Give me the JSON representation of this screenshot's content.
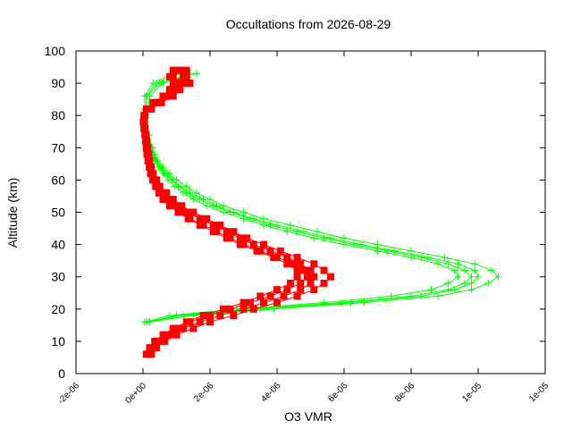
{
  "chart_data": {
    "type": "scatter",
    "title": "Occultations from 2026-08-29",
    "xlabel": "O3 VMR",
    "ylabel": "Altitude (km)",
    "xlim": [
      -2e-06,
      1e-05
    ],
    "ylim": [
      0,
      100
    ],
    "x_tick_values": [
      -2e-06,
      0,
      2e-06,
      4e-06,
      6e-06,
      8e-06,
      1e-05,
      1.2e-05
    ],
    "x_tick_labels": [
      "-2e-06",
      "0e+00",
      "2e-06",
      "4e-06",
      "6e-06",
      "8e-06",
      "1e-05",
      "1e-05"
    ],
    "y_ticks": [
      0,
      10,
      20,
      30,
      40,
      50,
      60,
      70,
      80,
      90,
      100
    ],
    "grid": false,
    "legend": "none",
    "series": [
      {
        "marker": "plus",
        "color": "#00ff00",
        "profiles": [
          {
            "altitude": [
              16,
              18,
              20,
              22,
              24,
              26,
              28,
              30,
              32,
              34,
              36,
              38,
              40,
              42,
              44,
              46,
              48,
              50,
              52,
              54,
              56,
              58,
              60,
              62,
              64,
              66,
              68,
              70,
              74,
              78,
              82,
              86,
              90,
              93
            ],
            "vmr": [
              1e-07,
              1.2e-06,
              3.5e-06,
              6.2e-06,
              8.3e-06,
              9.3e-06,
              9.8e-06,
              1e-05,
              9.9e-06,
              9.4e-06,
              8.5e-06,
              7.5e-06,
              6.5e-06,
              5.6e-06,
              4.8e-06,
              4e-06,
              3.3e-06,
              2.7e-06,
              2.2e-06,
              1.8e-06,
              1.4e-06,
              1.1e-06,
              9e-07,
              7e-07,
              5.5e-07,
              4e-07,
              3e-07,
              2.5e-07,
              1.5e-07,
              5e-08,
              1e-07,
              1e-07,
              4e-07,
              1.1e-06
            ]
          },
          {
            "altitude": [
              16,
              18,
              20,
              22,
              24,
              26,
              28,
              30,
              32,
              34,
              36,
              38,
              40,
              42,
              44,
              46,
              48,
              50,
              52,
              54,
              56,
              58,
              60,
              62,
              64,
              66,
              68,
              70,
              74,
              78,
              82,
              86,
              90,
              93
            ],
            "vmr": [
              2e-07,
              1.5e-06,
              3.9e-06,
              6.6e-06,
              8.8e-06,
              9.8e-06,
              1.03e-05,
              1.06e-05,
              1.04e-05,
              9.9e-06,
              9e-06,
              8e-06,
              7e-06,
              6e-06,
              5.2e-06,
              4.4e-06,
              3.6e-06,
              3e-06,
              2.4e-06,
              2e-06,
              1.6e-06,
              1.3e-06,
              1e-06,
              8e-07,
              6e-07,
              4.5e-07,
              3.5e-07,
              2.8e-07,
              1.8e-07,
              8e-08,
              1.5e-07,
              2e-07,
              6e-07,
              1.4e-06
            ]
          },
          {
            "altitude": [
              16,
              18,
              20,
              22,
              24,
              26,
              28,
              30,
              32,
              34,
              36,
              38,
              40,
              42,
              44,
              46,
              48,
              50,
              52,
              54,
              56,
              58,
              60,
              62,
              64,
              66,
              68,
              70,
              74,
              78,
              82,
              86,
              90,
              93
            ],
            "vmr": [
              5e-08,
              8e-07,
              2.8e-06,
              5.4e-06,
              7.4e-06,
              8.6e-06,
              9.1e-06,
              9.4e-06,
              9.3e-06,
              8.8e-06,
              8e-06,
              7e-06,
              6e-06,
              5.1e-06,
              4.3e-06,
              3.6e-06,
              3e-06,
              2.4e-06,
              1.9e-06,
              1.5e-06,
              1.2e-06,
              9.5e-07,
              7.5e-07,
              6e-07,
              4.5e-07,
              3.5e-07,
              2.5e-07,
              2e-07,
              1.2e-07,
              2e-08,
              5e-08,
              5e-08,
              3e-07,
              9e-07
            ]
          },
          {
            "altitude": [
              16,
              18,
              20,
              22,
              24,
              26,
              28,
              30,
              32,
              34,
              36,
              38,
              40,
              42,
              44,
              46,
              48,
              50,
              52,
              54,
              56,
              58,
              60,
              62,
              64,
              66,
              68,
              70,
              74,
              78,
              82,
              86,
              90,
              93
            ],
            "vmr": [
              1.5e-07,
              1e-06,
              3.2e-06,
              5.9e-06,
              8e-06,
              9.1e-06,
              9.6e-06,
              9.8e-06,
              9.6e-06,
              9.1e-06,
              8.3e-06,
              7.3e-06,
              6.3e-06,
              5.4e-06,
              4.6e-06,
              3.8e-06,
              3.2e-06,
              2.6e-06,
              2.1e-06,
              1.7e-06,
              1.3e-06,
              1.05e-06,
              8.5e-07,
              6.5e-07,
              5e-07,
              3.8e-07,
              2.8e-07,
              2.2e-07,
              1.3e-07,
              4e-08,
              8e-08,
              1.2e-07,
              5e-07,
              1.6e-06
            ]
          }
        ]
      },
      {
        "marker": "square",
        "color": "#ff0000",
        "profiles": [
          {
            "altitude": [
              6,
              8,
              10,
              12,
              14,
              16,
              18,
              20,
              22,
              24,
              26,
              28,
              30,
              32,
              34,
              36,
              38,
              40,
              42,
              44,
              46,
              48,
              50,
              52,
              54,
              56,
              58,
              60,
              62,
              64,
              66,
              68,
              70,
              72,
              74,
              76,
              78,
              80,
              82,
              84,
              86,
              88,
              90,
              92,
              94
            ],
            "vmr": [
              2e-07,
              3e-07,
              5e-07,
              8e-07,
              1.2e-06,
              1.7e-06,
              2.3e-06,
              3e-06,
              3.6e-06,
              4.2e-06,
              4.7e-06,
              5e-06,
              5.1e-06,
              5e-06,
              4.7e-06,
              4.3e-06,
              3.8e-06,
              3.3e-06,
              2.9e-06,
              2.5e-06,
              2.1e-06,
              1.7e-06,
              1.3e-06,
              1e-06,
              8e-07,
              6e-07,
              4.5e-07,
              3.5e-07,
              2.8e-07,
              2.2e-07,
              1.8e-07,
              1.5e-07,
              1.3e-07,
              1e-07,
              8e-08,
              5e-08,
              3e-08,
              5e-08,
              1.5e-07,
              4e-07,
              7e-07,
              9e-07,
              1e-06,
              9e-07,
              1.1e-06
            ]
          },
          {
            "altitude": [
              6,
              8,
              10,
              12,
              14,
              16,
              18,
              20,
              22,
              24,
              26,
              28,
              30,
              32,
              34,
              36,
              38,
              40,
              42,
              44,
              46,
              48,
              50,
              52,
              54,
              56,
              58,
              60,
              62,
              64,
              66,
              68,
              70,
              72,
              74,
              76,
              78,
              80,
              82,
              84,
              86,
              88,
              90,
              92,
              94
            ],
            "vmr": [
              1.5e-07,
              2.5e-07,
              4e-07,
              7e-07,
              1e-06,
              1.4e-06,
              2e-06,
              2.6e-06,
              3.2e-06,
              3.8e-06,
              4.3e-06,
              4.7e-06,
              4.9e-06,
              4.8e-06,
              4.5e-06,
              4e-06,
              3.5e-06,
              3e-06,
              2.6e-06,
              2.2e-06,
              1.8e-06,
              1.4e-06,
              1.1e-06,
              8.5e-07,
              6.5e-07,
              5e-07,
              4e-07,
              3e-07,
              2.5e-07,
              2e-07,
              1.6e-07,
              1.3e-07,
              1.1e-07,
              9e-08,
              7e-08,
              4e-08,
              2e-08,
              4e-08,
              2e-07,
              5e-07,
              8e-07,
              1.1e-06,
              1.2e-06,
              1.3e-06,
              1e-06
            ]
          },
          {
            "altitude": [
              6,
              8,
              10,
              12,
              14,
              16,
              18,
              20,
              22,
              24,
              26,
              28,
              30,
              32,
              34,
              36,
              38,
              40,
              42,
              44,
              46,
              48,
              50,
              52,
              54,
              56,
              58,
              60,
              62,
              64,
              66,
              68,
              70,
              72,
              74,
              76,
              78,
              80,
              82,
              84,
              86,
              88,
              90,
              92,
              94
            ],
            "vmr": [
              2.5e-07,
              4e-07,
              6.5e-07,
              1e-06,
              1.5e-06,
              2e-06,
              2.7e-06,
              3.3e-06,
              4e-06,
              4.6e-06,
              5.1e-06,
              5.4e-06,
              5.6e-06,
              5.4e-06,
              5.1e-06,
              4.6e-06,
              4.1e-06,
              3.6e-06,
              3.1e-06,
              2.7e-06,
              2.3e-06,
              1.9e-06,
              1.5e-06,
              1.15e-06,
              9e-07,
              7e-07,
              5e-07,
              4e-07,
              3e-07,
              2.4e-07,
              2e-07,
              1.7e-07,
              1.4e-07,
              1.1e-07,
              9e-08,
              6e-08,
              4e-08,
              6e-08,
              1e-07,
              3e-07,
              6e-07,
              8e-07,
              9e-07,
              1.2e-06,
              1.3e-06
            ]
          },
          {
            "altitude": [
              6,
              8,
              10,
              12,
              14,
              16,
              18,
              20,
              22,
              24,
              26,
              28,
              30,
              32,
              34,
              36,
              38,
              40,
              42,
              44,
              46,
              48,
              50,
              52,
              54,
              56,
              58,
              60,
              62,
              64,
              66,
              68,
              70,
              72,
              74,
              76,
              78,
              80,
              82,
              84,
              86,
              88,
              90,
              92,
              94
            ],
            "vmr": [
              1e-07,
              2e-07,
              3.5e-07,
              6e-07,
              9e-07,
              1.3e-06,
              1.8e-06,
              2.4e-06,
              3e-06,
              3.5e-06,
              4e-06,
              4.4e-06,
              4.6e-06,
              4.6e-06,
              4.3e-06,
              3.9e-06,
              3.4e-06,
              2.9e-06,
              2.5e-06,
              2.1e-06,
              1.7e-06,
              1.35e-06,
              1.05e-06,
              8e-07,
              6e-07,
              4.8e-07,
              3.8e-07,
              2.9e-07,
              2.3e-07,
              1.9e-07,
              1.5e-07,
              1.2e-07,
              1e-07,
              8e-08,
              6e-08,
              3e-08,
              1e-08,
              3e-08,
              2.5e-07,
              5.5e-07,
              9e-07,
              1e-06,
              1.4e-06,
              8e-07,
              9e-07
            ]
          }
        ]
      }
    ]
  }
}
